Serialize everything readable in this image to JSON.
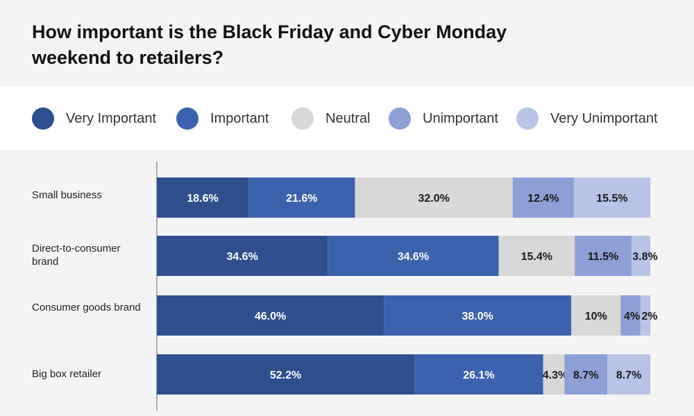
{
  "chart_data": {
    "type": "bar",
    "orientation": "horizontal",
    "stacked": true,
    "title": "How important is the Black Friday and Cyber Monday weekend to retailers?",
    "legend_position": "top",
    "grid": false,
    "xlim": [
      0,
      100
    ],
    "categories": [
      "Small business",
      "Direct-to-consumer brand",
      "Consumer goods brand",
      "Big box retailer"
    ],
    "series": [
      {
        "name": "Very Important",
        "color": "#2f4f8f",
        "values": [
          18.6,
          34.6,
          46.0,
          52.2
        ],
        "labels": [
          "18.6%",
          "34.6%",
          "46.0%",
          "52.2%"
        ]
      },
      {
        "name": "Important",
        "color": "#3c62ad",
        "values": [
          21.6,
          34.6,
          38.0,
          26.1
        ],
        "labels": [
          "21.6%",
          "34.6%",
          "38.0%",
          "26.1%"
        ]
      },
      {
        "name": "Neutral",
        "color": "#d8d8d8",
        "values": [
          32.0,
          15.4,
          10,
          4.3
        ],
        "labels": [
          "32.0%",
          "15.4%",
          "10%",
          "4.3%"
        ]
      },
      {
        "name": "Unimportant",
        "color": "#8e9fd6",
        "values": [
          12.4,
          11.5,
          4,
          8.7
        ],
        "labels": [
          "12.4%",
          "11.5%",
          "4%",
          "8.7%"
        ]
      },
      {
        "name": "Very Unimportant",
        "color": "#b9c3e6",
        "values": [
          15.5,
          3.8,
          2,
          8.7
        ],
        "labels": [
          "15.5%",
          "3.8%",
          "2%",
          "8.7%"
        ]
      }
    ]
  }
}
